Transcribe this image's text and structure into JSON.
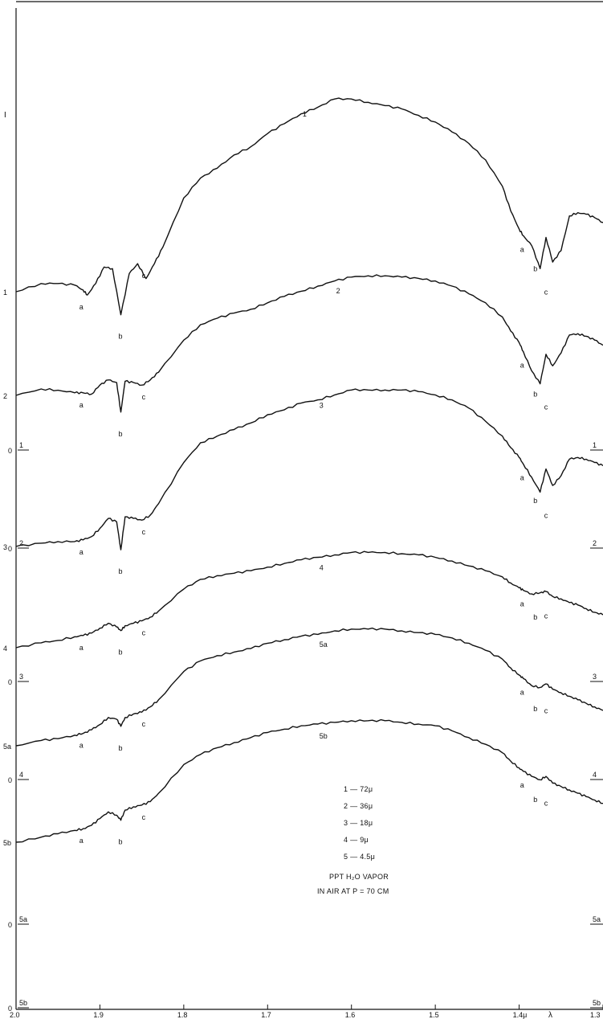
{
  "chart_data": {
    "type": "line",
    "title": "",
    "xlabel": "λ",
    "ylabel": "I",
    "xlim": [
      2.0,
      1.3
    ],
    "x_tick_labels": [
      "2.0",
      "1.9",
      "1.8",
      "1.7",
      "1.6",
      "1.5",
      "1.4μ",
      "1.3"
    ],
    "series": [
      {
        "name": "1",
        "label": "1",
        "zero_label": "0",
        "zero_marker": "1",
        "start_label": "1",
        "x": [
          2.0,
          1.97,
          1.95,
          1.93,
          1.92,
          1.915,
          1.905,
          1.895,
          1.885,
          1.875,
          1.865,
          1.855,
          1.845,
          1.835,
          1.825,
          1.8,
          1.78,
          1.76,
          1.74,
          1.72,
          1.7,
          1.68,
          1.66,
          1.64,
          1.62,
          1.6,
          1.58,
          1.56,
          1.54,
          1.52,
          1.5,
          1.48,
          1.46,
          1.44,
          1.42,
          1.41,
          1.4,
          1.395,
          1.385,
          1.375,
          1.368,
          1.36,
          1.35,
          1.34,
          1.33,
          1.32,
          1.31,
          1.3
        ],
        "y": [
          0.28,
          0.33,
          0.33,
          0.32,
          0.29,
          0.26,
          0.33,
          0.43,
          0.42,
          0.14,
          0.39,
          0.45,
          0.36,
          0.45,
          0.55,
          0.85,
          0.97,
          1.03,
          1.11,
          1.16,
          1.24,
          1.3,
          1.36,
          1.4,
          1.45,
          1.45,
          1.43,
          1.41,
          1.39,
          1.35,
          1.31,
          1.25,
          1.18,
          1.08,
          0.92,
          0.77,
          0.66,
          0.62,
          0.56,
          0.42,
          0.61,
          0.46,
          0.53,
          0.74,
          0.76,
          0.75,
          0.73,
          0.7
        ]
      },
      {
        "name": "2",
        "label": "2",
        "zero_label": "0",
        "zero_marker": "2",
        "start_label": "2",
        "x": [
          2.0,
          1.97,
          1.95,
          1.93,
          1.92,
          1.91,
          1.9,
          1.89,
          1.88,
          1.875,
          1.87,
          1.86,
          1.85,
          1.84,
          1.83,
          1.8,
          1.78,
          1.76,
          1.74,
          1.72,
          1.7,
          1.68,
          1.66,
          1.64,
          1.62,
          1.6,
          1.58,
          1.56,
          1.54,
          1.52,
          1.5,
          1.48,
          1.46,
          1.44,
          1.42,
          1.41,
          1.4,
          1.395,
          1.385,
          1.375,
          1.368,
          1.36,
          1.35,
          1.34,
          1.33,
          1.32,
          1.31,
          1.3
        ],
        "y": [
          0.37,
          0.42,
          0.41,
          0.39,
          0.39,
          0.38,
          0.45,
          0.49,
          0.47,
          0.24,
          0.48,
          0.47,
          0.45,
          0.49,
          0.55,
          0.8,
          0.92,
          0.97,
          1.01,
          1.04,
          1.09,
          1.14,
          1.18,
          1.22,
          1.26,
          1.29,
          1.3,
          1.3,
          1.29,
          1.28,
          1.26,
          1.22,
          1.16,
          1.09,
          0.98,
          0.87,
          0.78,
          0.71,
          0.56,
          0.46,
          0.69,
          0.6,
          0.7,
          0.84,
          0.85,
          0.83,
          0.8,
          0.76
        ]
      },
      {
        "name": "3",
        "label": "3",
        "zero_label": "0",
        "zero_marker": "3",
        "start_label": "3",
        "x": [
          2.0,
          1.97,
          1.95,
          1.93,
          1.92,
          1.91,
          1.9,
          1.89,
          1.88,
          1.875,
          1.87,
          1.86,
          1.85,
          1.84,
          1.83,
          1.8,
          1.78,
          1.76,
          1.74,
          1.72,
          1.7,
          1.68,
          1.66,
          1.64,
          1.62,
          1.6,
          1.58,
          1.56,
          1.54,
          1.52,
          1.5,
          1.48,
          1.46,
          1.44,
          1.42,
          1.41,
          1.4,
          1.395,
          1.385,
          1.375,
          1.368,
          1.36,
          1.35,
          1.34,
          1.33,
          1.32,
          1.31,
          1.3
        ],
        "y": [
          0.39,
          0.41,
          0.42,
          0.42,
          0.43,
          0.45,
          0.5,
          0.56,
          0.54,
          0.37,
          0.57,
          0.56,
          0.55,
          0.58,
          0.65,
          0.9,
          1.02,
          1.06,
          1.1,
          1.14,
          1.19,
          1.22,
          1.26,
          1.28,
          1.31,
          1.34,
          1.34,
          1.34,
          1.34,
          1.33,
          1.31,
          1.28,
          1.23,
          1.15,
          1.06,
          0.99,
          0.93,
          0.89,
          0.81,
          0.72,
          0.86,
          0.76,
          0.82,
          0.92,
          0.93,
          0.92,
          0.9,
          0.88
        ]
      },
      {
        "name": "4",
        "label": "4",
        "zero_label": "0",
        "zero_marker": "4",
        "start_label": "4",
        "x": [
          2.0,
          1.97,
          1.95,
          1.93,
          1.92,
          1.91,
          1.9,
          1.89,
          1.88,
          1.875,
          1.87,
          1.86,
          1.85,
          1.84,
          1.83,
          1.8,
          1.78,
          1.76,
          1.74,
          1.72,
          1.7,
          1.68,
          1.66,
          1.64,
          1.62,
          1.6,
          1.58,
          1.56,
          1.54,
          1.52,
          1.5,
          1.48,
          1.46,
          1.44,
          1.42,
          1.41,
          1.4,
          1.395,
          1.385,
          1.375,
          1.368,
          1.36,
          1.35,
          1.34,
          1.33,
          1.32,
          1.31,
          1.3
        ],
        "y": [
          0.46,
          0.5,
          0.52,
          0.55,
          0.56,
          0.58,
          0.62,
          0.66,
          0.63,
          0.6,
          0.64,
          0.66,
          0.68,
          0.71,
          0.76,
          0.94,
          1.02,
          1.05,
          1.07,
          1.09,
          1.12,
          1.15,
          1.18,
          1.2,
          1.22,
          1.24,
          1.24,
          1.24,
          1.23,
          1.22,
          1.2,
          1.17,
          1.13,
          1.09,
          1.04,
          0.99,
          0.95,
          0.93,
          0.9,
          0.91,
          0.92,
          0.88,
          0.86,
          0.83,
          0.81,
          0.78,
          0.75,
          0.73
        ]
      },
      {
        "name": "5a",
        "label": "5a",
        "zero_label": "0",
        "zero_marker": "5a",
        "start_label": "5a",
        "x": [
          2.0,
          1.97,
          1.95,
          1.93,
          1.92,
          1.91,
          1.9,
          1.89,
          1.88,
          1.875,
          1.87,
          1.86,
          1.85,
          1.84,
          1.83,
          1.8,
          1.78,
          1.76,
          1.74,
          1.72,
          1.7,
          1.68,
          1.66,
          1.64,
          1.62,
          1.6,
          1.58,
          1.56,
          1.54,
          1.52,
          1.5,
          1.48,
          1.46,
          1.44,
          1.42,
          1.41,
          1.4,
          1.395,
          1.385,
          1.375,
          1.368,
          1.36,
          1.35,
          1.34,
          1.33,
          1.32,
          1.31,
          1.3
        ],
        "y": [
          0.68,
          0.71,
          0.72,
          0.74,
          0.75,
          0.77,
          0.8,
          0.84,
          0.83,
          0.79,
          0.84,
          0.86,
          0.87,
          0.9,
          0.94,
          1.1,
          1.16,
          1.19,
          1.21,
          1.23,
          1.26,
          1.28,
          1.3,
          1.31,
          1.33,
          1.34,
          1.34,
          1.34,
          1.33,
          1.32,
          1.31,
          1.29,
          1.26,
          1.22,
          1.17,
          1.12,
          1.08,
          1.06,
          1.02,
          1.01,
          1.03,
          1.0,
          0.98,
          0.96,
          0.94,
          0.92,
          0.9,
          0.88
        ]
      },
      {
        "name": "5b",
        "label": "5b",
        "zero_label": "0",
        "zero_marker": "5b",
        "start_label": "5b",
        "x": [
          2.0,
          1.97,
          1.95,
          1.93,
          1.92,
          1.91,
          1.9,
          1.89,
          1.88,
          1.875,
          1.87,
          1.86,
          1.85,
          1.84,
          1.83,
          1.8,
          1.78,
          1.76,
          1.74,
          1.72,
          1.7,
          1.68,
          1.66,
          1.64,
          1.62,
          1.6,
          1.58,
          1.56,
          1.54,
          1.52,
          1.5,
          1.48,
          1.46,
          1.44,
          1.42,
          1.41,
          1.4,
          1.395,
          1.385,
          1.375,
          1.368,
          1.36,
          1.35,
          1.34,
          1.33,
          1.32,
          1.31,
          1.3
        ],
        "y": [
          0.68,
          0.71,
          0.73,
          0.75,
          0.76,
          0.78,
          0.82,
          0.86,
          0.84,
          0.81,
          0.87,
          0.89,
          0.9,
          0.92,
          0.97,
          1.14,
          1.2,
          1.24,
          1.27,
          1.3,
          1.33,
          1.35,
          1.37,
          1.38,
          1.39,
          1.4,
          1.4,
          1.4,
          1.39,
          1.38,
          1.37,
          1.34,
          1.3,
          1.26,
          1.21,
          1.16,
          1.12,
          1.1,
          1.07,
          1.05,
          1.07,
          1.03,
          1.01,
          0.99,
          0.97,
          0.95,
          0.93,
          0.91
        ]
      }
    ],
    "band_labels": [
      "a",
      "b",
      "c"
    ],
    "band_wavelengths": {
      "a_left": 1.915,
      "b_left": 1.875,
      "c_left": 1.85,
      "a_right": 1.395,
      "b_right": 1.385,
      "c_right": 1.372
    },
    "legend": {
      "entries": [
        "1 — 72μ",
        "2 — 36μ",
        "3 — 18μ",
        "4 — 9μ",
        "5 — 4.5μ"
      ],
      "note_line1": "PPT H₂O VAPOR",
      "note_line2": "IN AIR AT P = 70 CM"
    },
    "grid": false
  }
}
